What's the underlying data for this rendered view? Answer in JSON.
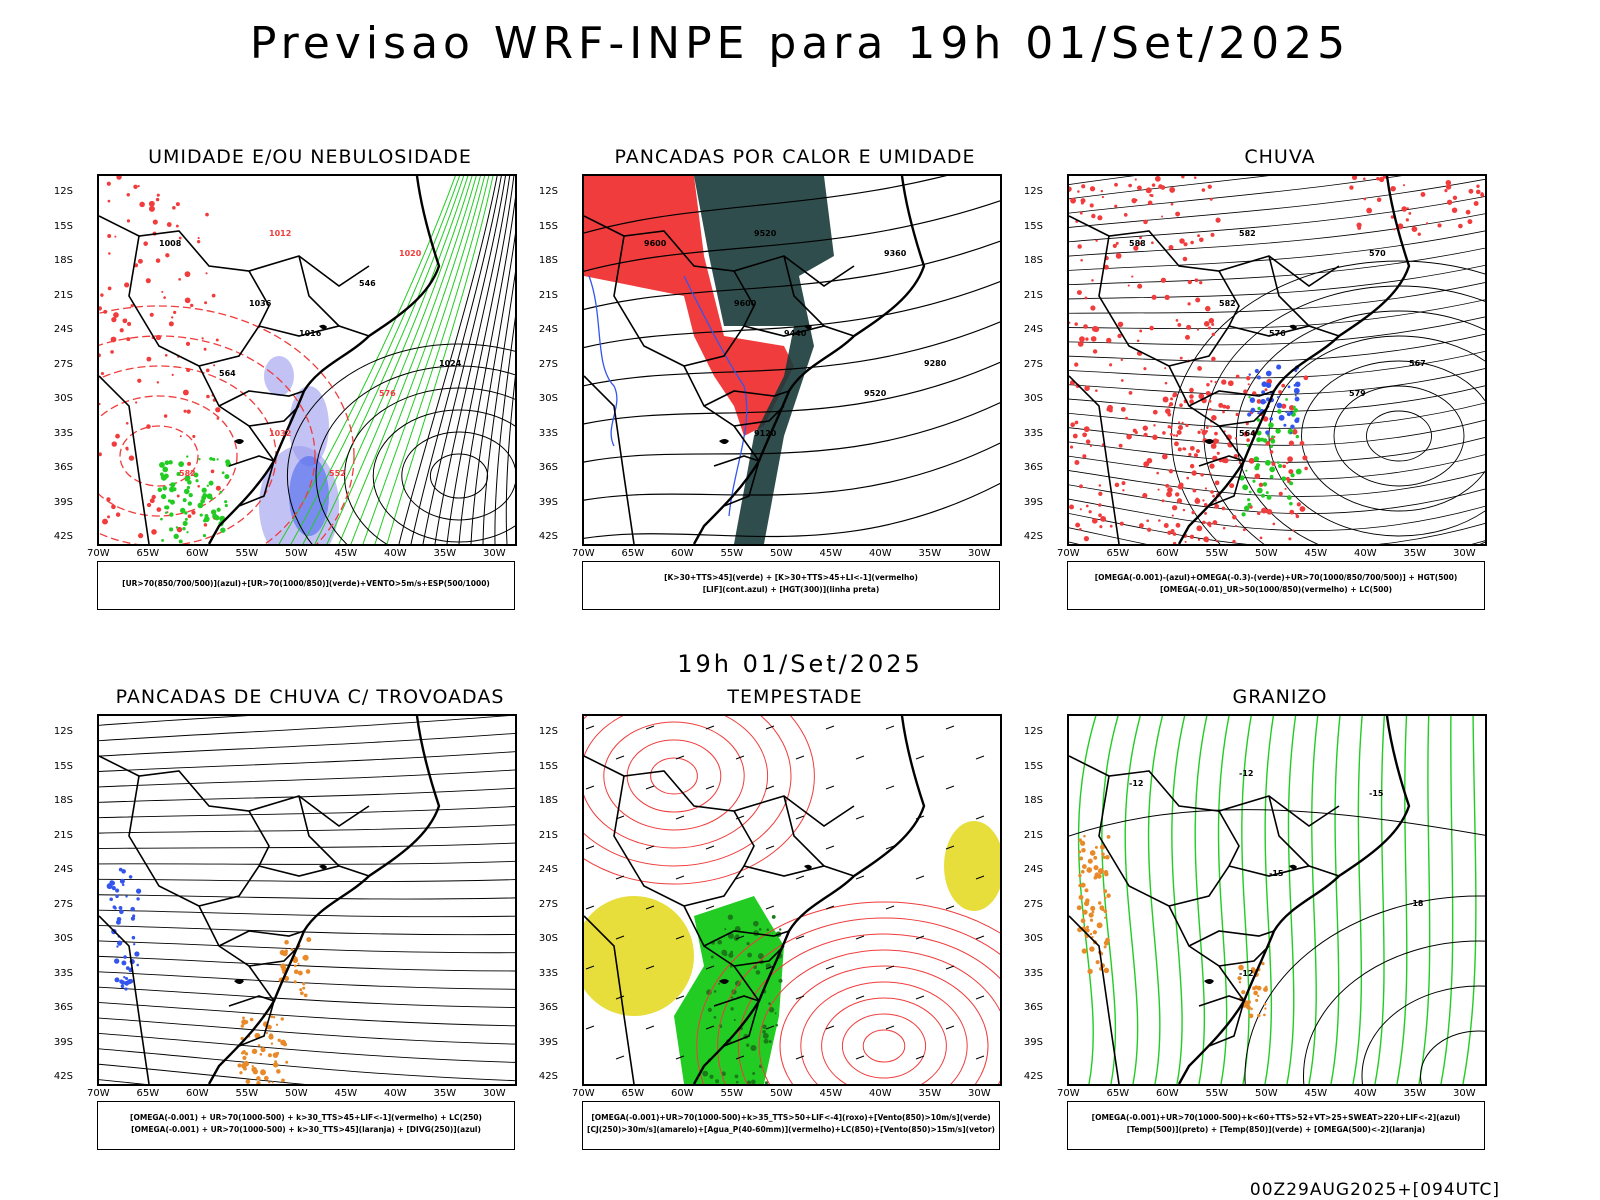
{
  "title": "Previsao WRF-INPE  para 19h 01/Set/2025",
  "middle_title": "19h 01/Set/2025",
  "footer": "00Z29AUG2025+[094UTC]",
  "lat_ticks": [
    "12S",
    "15S",
    "18S",
    "21S",
    "24S",
    "27S",
    "30S",
    "33S",
    "36S",
    "39S",
    "42S"
  ],
  "lon_ticks": [
    "70W",
    "65W",
    "60W",
    "55W",
    "50W",
    "45W",
    "40W",
    "35W",
    "30W"
  ],
  "panels": [
    {
      "id": "umidade",
      "title": "UMIDADE E/OU NEBULOSIDADE",
      "legend": [
        "[UR>70(850/700/500)](azul)+[UR>70(1000/850)](verde)+VENTO>5m/s+ESP(500/1000)"
      ],
      "labels": [
        "1008",
        "1012",
        "1016",
        "1020",
        "1024",
        "1032",
        "1036",
        "576",
        "564",
        "552",
        "546",
        "582"
      ]
    },
    {
      "id": "pancadas-calor",
      "title": "PANCADAS POR CALOR E UMIDADE",
      "legend": [
        "[K>30+TTS>45](verde) + [K>30+TTS>45+LI<-1](vermelho)",
        "[LIF](cont.azul) + [HGT(300)](linha preta)"
      ],
      "labels": [
        "9600",
        "9520",
        "9440",
        "9360",
        "9280",
        "9120",
        "9600",
        "9520"
      ]
    },
    {
      "id": "chuva",
      "title": "CHUVA",
      "legend": [
        "[OMEGA(-0.001)-(azul)+OMEGA(-0.3)-(verde)+UR>70(1000/850/700/500)] + HGT(500)",
        "[OMEGA(-0.01)_UR>50(1000/850)(vermelho) + LC(500)"
      ],
      "labels": [
        "588",
        "582",
        "576",
        "570",
        "567",
        "564",
        "582",
        "579"
      ]
    },
    {
      "id": "trovoadas",
      "title": "PANCADAS DE CHUVA C/ TROVOADAS",
      "legend": [
        "[OMEGA(-0.001) + UR>70(1000-500) + k>30_TTS>45+LIF<-1](vermelho) + LC(250)",
        "[OMEGA(-0.001) + UR>70(1000-500) + k>30_TTS>45](laranja) + [DIVG(250)](azul)"
      ],
      "labels": []
    },
    {
      "id": "tempestade",
      "title": "TEMPESTADE",
      "legend": [
        "[OMEGA(-0.001)+UR>70(1000-500)+k>35_TTS>50+LIF<-4](roxo)+[Vento(850)>10m/s](verde)",
        "[CJ(250)>30m/s](amarelo)+[Agua_P(40-60mm)](vermelho)+LC(850)+[Vento(850)>15m/s](vetor)"
      ],
      "labels": []
    },
    {
      "id": "granizo",
      "title": "GRANIZO",
      "legend": [
        "[OMEGA(-0.001)+UR>70(1000-500)+k<60+TTS>52+VT>25+SWEAT>220+LIF<-2](azul)",
        "[Temp(500)](preto) + [Temp(850)](verde) + [OMEGA(500)<-2](laranja)"
      ],
      "labels": [
        "-12",
        "-12",
        "-15",
        "-15",
        "-18",
        "-12"
      ]
    }
  ],
  "colors": {
    "red": "#f03c3c",
    "green": "#22cc22",
    "blue": "#3355ee",
    "dark_teal": "#1a3a3a",
    "yellow": "#e6dc32",
    "orange": "#e88a2a",
    "lavender": "#9999ee"
  }
}
